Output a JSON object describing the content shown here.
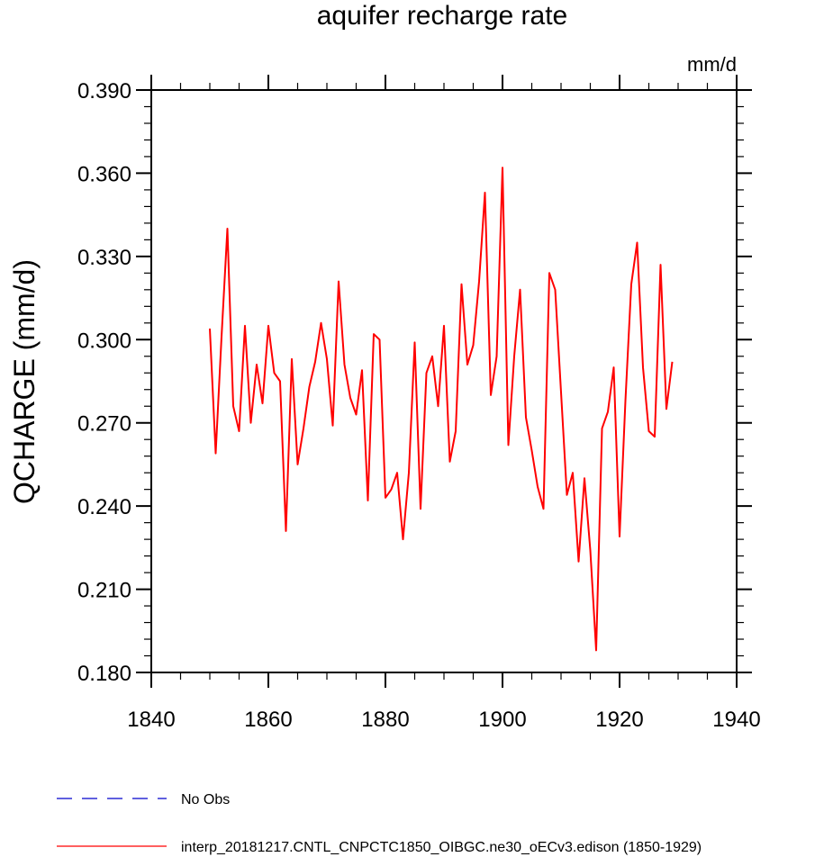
{
  "chart_data": {
    "type": "line",
    "title": "aquifer recharge rate",
    "units": "mm/d",
    "xlabel": "",
    "ylabel": "QCHARGE  (mm/d)",
    "xlim": [
      1840,
      1940
    ],
    "ylim": [
      0.18,
      0.39
    ],
    "xticks": [
      1840,
      1860,
      1880,
      1900,
      1920,
      1940
    ],
    "xtick_labels": [
      "1840",
      "1860",
      "1880",
      "1900",
      "1920",
      "1940"
    ],
    "yticks": [
      0.18,
      0.21,
      0.24,
      0.27,
      0.3,
      0.33,
      0.36,
      0.39
    ],
    "ytick_labels": [
      "0.180",
      "0.210",
      "0.240",
      "0.270",
      "0.300",
      "0.330",
      "0.360",
      "0.390"
    ],
    "series": [
      {
        "name": "No Obs",
        "color": "#0000cc",
        "style": "dashed",
        "x": [],
        "values": []
      },
      {
        "name": "interp_20181217.CNTL_CNPCTC1850_OIBGC.ne30_oECv3.edison (1850-1929)",
        "color": "#ff0000",
        "style": "solid",
        "x": [
          1850,
          1851,
          1852,
          1853,
          1854,
          1855,
          1856,
          1857,
          1858,
          1859,
          1860,
          1861,
          1862,
          1863,
          1864,
          1865,
          1866,
          1867,
          1868,
          1869,
          1870,
          1871,
          1872,
          1873,
          1874,
          1875,
          1876,
          1877,
          1878,
          1879,
          1880,
          1881,
          1882,
          1883,
          1884,
          1885,
          1886,
          1887,
          1888,
          1889,
          1890,
          1891,
          1892,
          1893,
          1894,
          1895,
          1896,
          1897,
          1898,
          1899,
          1900,
          1901,
          1902,
          1903,
          1904,
          1905,
          1906,
          1907,
          1908,
          1909,
          1910,
          1911,
          1912,
          1913,
          1914,
          1915,
          1916,
          1917,
          1918,
          1919,
          1920,
          1921,
          1922,
          1923,
          1924,
          1925,
          1926,
          1927,
          1928,
          1929
        ],
        "values": [
          0.304,
          0.259,
          0.301,
          0.34,
          0.276,
          0.267,
          0.305,
          0.27,
          0.291,
          0.277,
          0.305,
          0.288,
          0.285,
          0.231,
          0.293,
          0.255,
          0.268,
          0.283,
          0.292,
          0.306,
          0.293,
          0.269,
          0.321,
          0.291,
          0.279,
          0.273,
          0.289,
          0.242,
          0.302,
          0.3,
          0.243,
          0.246,
          0.252,
          0.228,
          0.252,
          0.299,
          0.239,
          0.288,
          0.294,
          0.276,
          0.305,
          0.256,
          0.267,
          0.32,
          0.291,
          0.298,
          0.321,
          0.353,
          0.28,
          0.294,
          0.362,
          0.262,
          0.294,
          0.318,
          0.272,
          0.26,
          0.247,
          0.239,
          0.324,
          0.318,
          0.281,
          0.244,
          0.252,
          0.22,
          0.25,
          0.224,
          0.188,
          0.268,
          0.274,
          0.29,
          0.229,
          0.278,
          0.32,
          0.335,
          0.29,
          0.267,
          0.265,
          0.327,
          0.275,
          0.292
        ]
      }
    ]
  }
}
